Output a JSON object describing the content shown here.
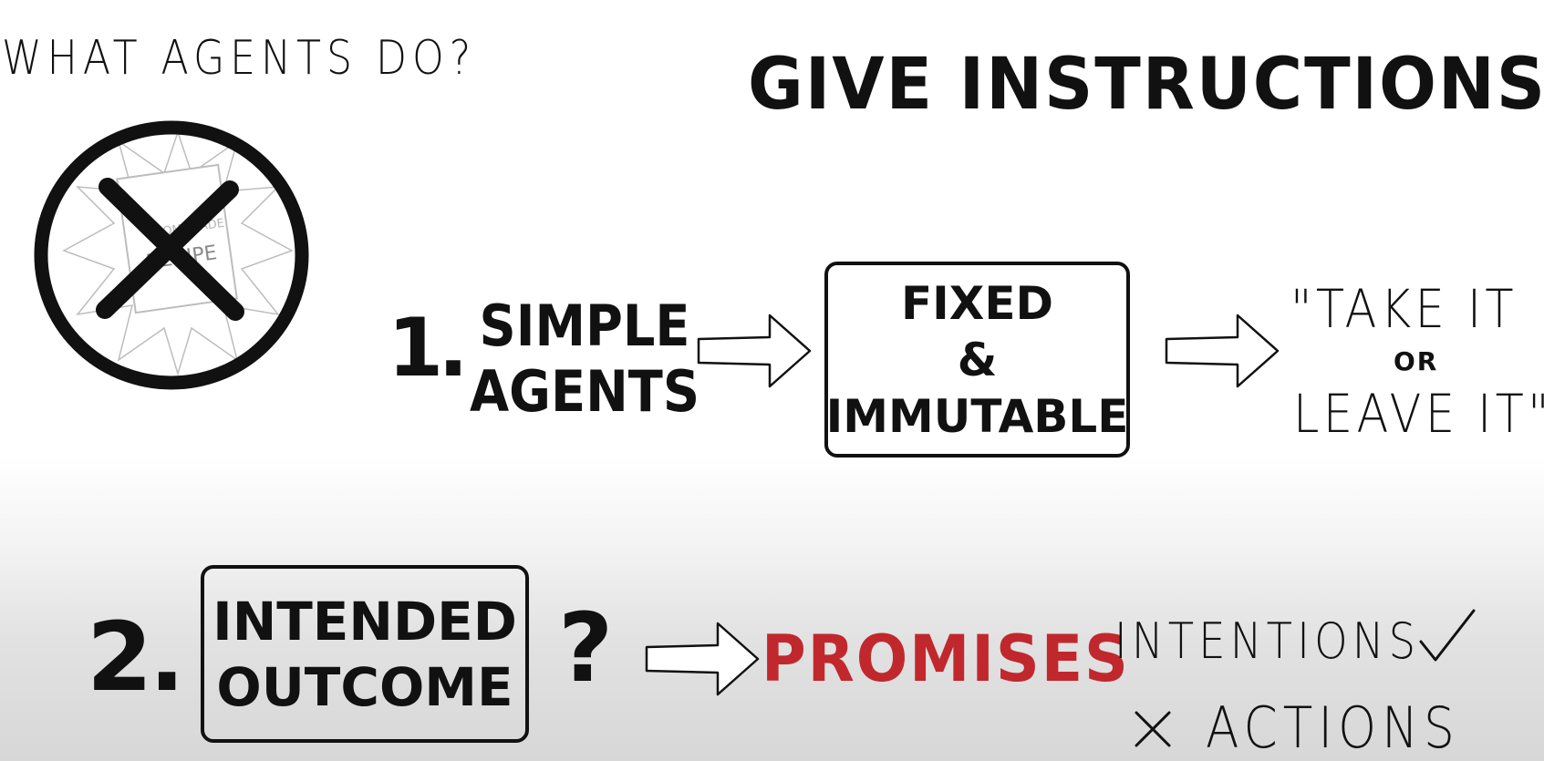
{
  "question": "WHAT AGENTS DO?",
  "title": "GIVE INSTRUCTIONS",
  "recipe_card": {
    "line1": "HOMEMADE",
    "line2": "RECIPE",
    "icon": "crossed-out-recipe-icon"
  },
  "step1": {
    "number": "1.",
    "label_line1": "SIMPLE",
    "label_line2": "AGENTS",
    "box_line1": "FIXED",
    "box_line2": "&",
    "box_line3": "IMMUTABLE",
    "quote_line1": "\"TAKE IT",
    "quote_or": "OR",
    "quote_line2": "LEAVE IT\""
  },
  "step2": {
    "number": "2.",
    "box_line1": "INTENDED",
    "box_line2": "OUTCOME",
    "question_mark": "?",
    "result": "PROMISES",
    "result_color": "#c0282d",
    "intentions": "INTENTIONS",
    "intentions_icon": "check-icon",
    "actions": "ACTIONS",
    "actions_icon": "x-icon"
  }
}
